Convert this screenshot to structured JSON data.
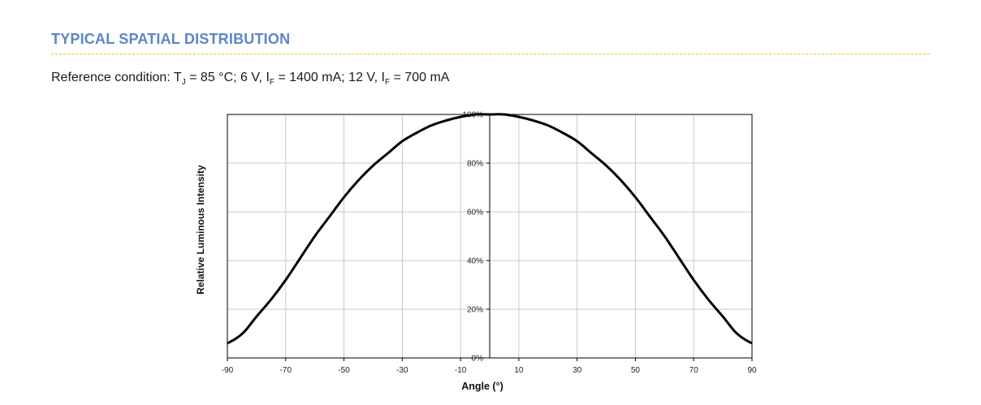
{
  "header": {
    "title": "TYPICAL SPATIAL DISTRIBUTION",
    "reference": {
      "prefix": "Reference condition: T",
      "tj_sub": "J",
      "part2": " = 85 °C; 6 V, I",
      "if_sub1": "F",
      "part3": " = 1400 mA; 12 V, I",
      "if_sub2": "F",
      "part4": " = 700 mA"
    }
  },
  "colors": {
    "title": "#5b86c5",
    "rule": "#f0c419",
    "curve": "#000000",
    "grid": "#c8c8c8"
  },
  "chart_data": {
    "type": "line",
    "xlabel": "Angle (°)",
    "ylabel": "Relative Luminous Intensity",
    "xlim": [
      -90,
      90
    ],
    "ylim": [
      0,
      100
    ],
    "x_ticks": [
      -90,
      -70,
      -50,
      -30,
      -10,
      10,
      30,
      50,
      70,
      90
    ],
    "x_tick_labels": [
      "-90",
      "-70",
      "-50",
      "-30",
      "-10",
      "10",
      "30",
      "50",
      "70",
      "90"
    ],
    "y_ticks": [
      0,
      20,
      40,
      60,
      80,
      100
    ],
    "y_tick_labels": [
      "0%",
      "20%",
      "40%",
      "60%",
      "80%",
      "100%"
    ],
    "grid": true,
    "series": [
      {
        "x": [
          -90,
          -87,
          -84,
          -80,
          -75,
          -70,
          -65,
          -60,
          -55,
          -50,
          -45,
          -40,
          -35,
          -30,
          -25,
          -20,
          -15,
          -10,
          -5,
          0,
          5,
          10,
          15,
          20,
          25,
          30,
          35,
          40,
          45,
          50,
          55,
          60,
          65,
          70,
          75,
          80,
          84,
          87,
          90
        ],
        "y": [
          6,
          8,
          11,
          17,
          24,
          32,
          41,
          50,
          58,
          66,
          73,
          79,
          84,
          89,
          92.5,
          95.5,
          97.5,
          99,
          100,
          100,
          100,
          99,
          97.5,
          95.5,
          92.5,
          89,
          84,
          79,
          73,
          66,
          58,
          50,
          41,
          32,
          24,
          17,
          11,
          8,
          6
        ]
      }
    ]
  }
}
